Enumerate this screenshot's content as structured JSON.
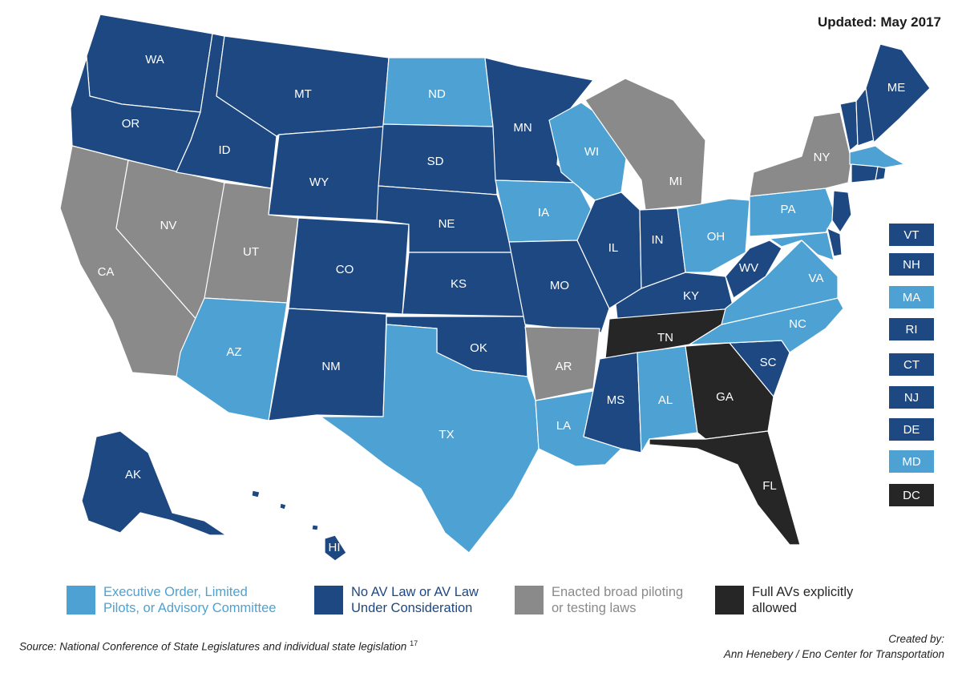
{
  "header": {
    "updated": "Updated: May 2017"
  },
  "colors": {
    "exec": "#4da2d3",
    "noav": "#1d4882",
    "enacted": "#8a8a8a",
    "full": "#262626"
  },
  "states": [
    {
      "abbr": "WA",
      "cat": "noav"
    },
    {
      "abbr": "OR",
      "cat": "noav"
    },
    {
      "abbr": "CA",
      "cat": "enacted"
    },
    {
      "abbr": "NV",
      "cat": "enacted"
    },
    {
      "abbr": "ID",
      "cat": "noav"
    },
    {
      "abbr": "MT",
      "cat": "noav"
    },
    {
      "abbr": "WY",
      "cat": "noav"
    },
    {
      "abbr": "UT",
      "cat": "enacted"
    },
    {
      "abbr": "AZ",
      "cat": "exec"
    },
    {
      "abbr": "CO",
      "cat": "noav"
    },
    {
      "abbr": "NM",
      "cat": "noav"
    },
    {
      "abbr": "ND",
      "cat": "exec"
    },
    {
      "abbr": "SD",
      "cat": "noav"
    },
    {
      "abbr": "NE",
      "cat": "noav"
    },
    {
      "abbr": "KS",
      "cat": "noav"
    },
    {
      "abbr": "OK",
      "cat": "noav"
    },
    {
      "abbr": "TX",
      "cat": "exec"
    },
    {
      "abbr": "MN",
      "cat": "noav"
    },
    {
      "abbr": "IA",
      "cat": "exec"
    },
    {
      "abbr": "MO",
      "cat": "noav"
    },
    {
      "abbr": "AR",
      "cat": "enacted"
    },
    {
      "abbr": "LA",
      "cat": "exec"
    },
    {
      "abbr": "WI",
      "cat": "exec"
    },
    {
      "abbr": "IL",
      "cat": "noav"
    },
    {
      "abbr": "MS",
      "cat": "noav"
    },
    {
      "abbr": "MI",
      "cat": "enacted"
    },
    {
      "abbr": "IN",
      "cat": "noav"
    },
    {
      "abbr": "KY",
      "cat": "noav"
    },
    {
      "abbr": "TN",
      "cat": "full"
    },
    {
      "abbr": "AL",
      "cat": "exec"
    },
    {
      "abbr": "OH",
      "cat": "exec"
    },
    {
      "abbr": "WV",
      "cat": "noav"
    },
    {
      "abbr": "GA",
      "cat": "full"
    },
    {
      "abbr": "FL",
      "cat": "full"
    },
    {
      "abbr": "SC",
      "cat": "noav"
    },
    {
      "abbr": "NC",
      "cat": "exec"
    },
    {
      "abbr": "VA",
      "cat": "exec"
    },
    {
      "abbr": "PA",
      "cat": "exec"
    },
    {
      "abbr": "NY",
      "cat": "enacted"
    },
    {
      "abbr": "ME",
      "cat": "noav"
    },
    {
      "abbr": "AK",
      "cat": "noav"
    },
    {
      "abbr": "HI",
      "cat": "noav"
    }
  ],
  "small_states": [
    {
      "abbr": "VT",
      "cat": "noav"
    },
    {
      "abbr": "NH",
      "cat": "noav"
    },
    {
      "abbr": "MA",
      "cat": "exec"
    },
    {
      "abbr": "RI",
      "cat": "noav"
    },
    {
      "abbr": "CT",
      "cat": "noav"
    },
    {
      "abbr": "NJ",
      "cat": "noav"
    },
    {
      "abbr": "DE",
      "cat": "noav"
    },
    {
      "abbr": "MD",
      "cat": "exec"
    },
    {
      "abbr": "DC",
      "cat": "full"
    }
  ],
  "legend": [
    {
      "cat": "exec",
      "line1": "Executive Order, Limited",
      "line2": "Pilots, or Advisory Committee"
    },
    {
      "cat": "noav",
      "line1": "No AV Law or AV Law",
      "line2": "Under Consideration"
    },
    {
      "cat": "enacted",
      "line1": "Enacted broad piloting",
      "line2": "or testing laws"
    },
    {
      "cat": "full",
      "line1": "Full AVs explicitly",
      "line2": "allowed"
    }
  ],
  "footer": {
    "source": "Source: National Conference of State Legislatures and individual state legislation",
    "source_note": "17",
    "created_by": "Created by:",
    "credit": "Ann Henebery / Eno Center for Transportation"
  }
}
